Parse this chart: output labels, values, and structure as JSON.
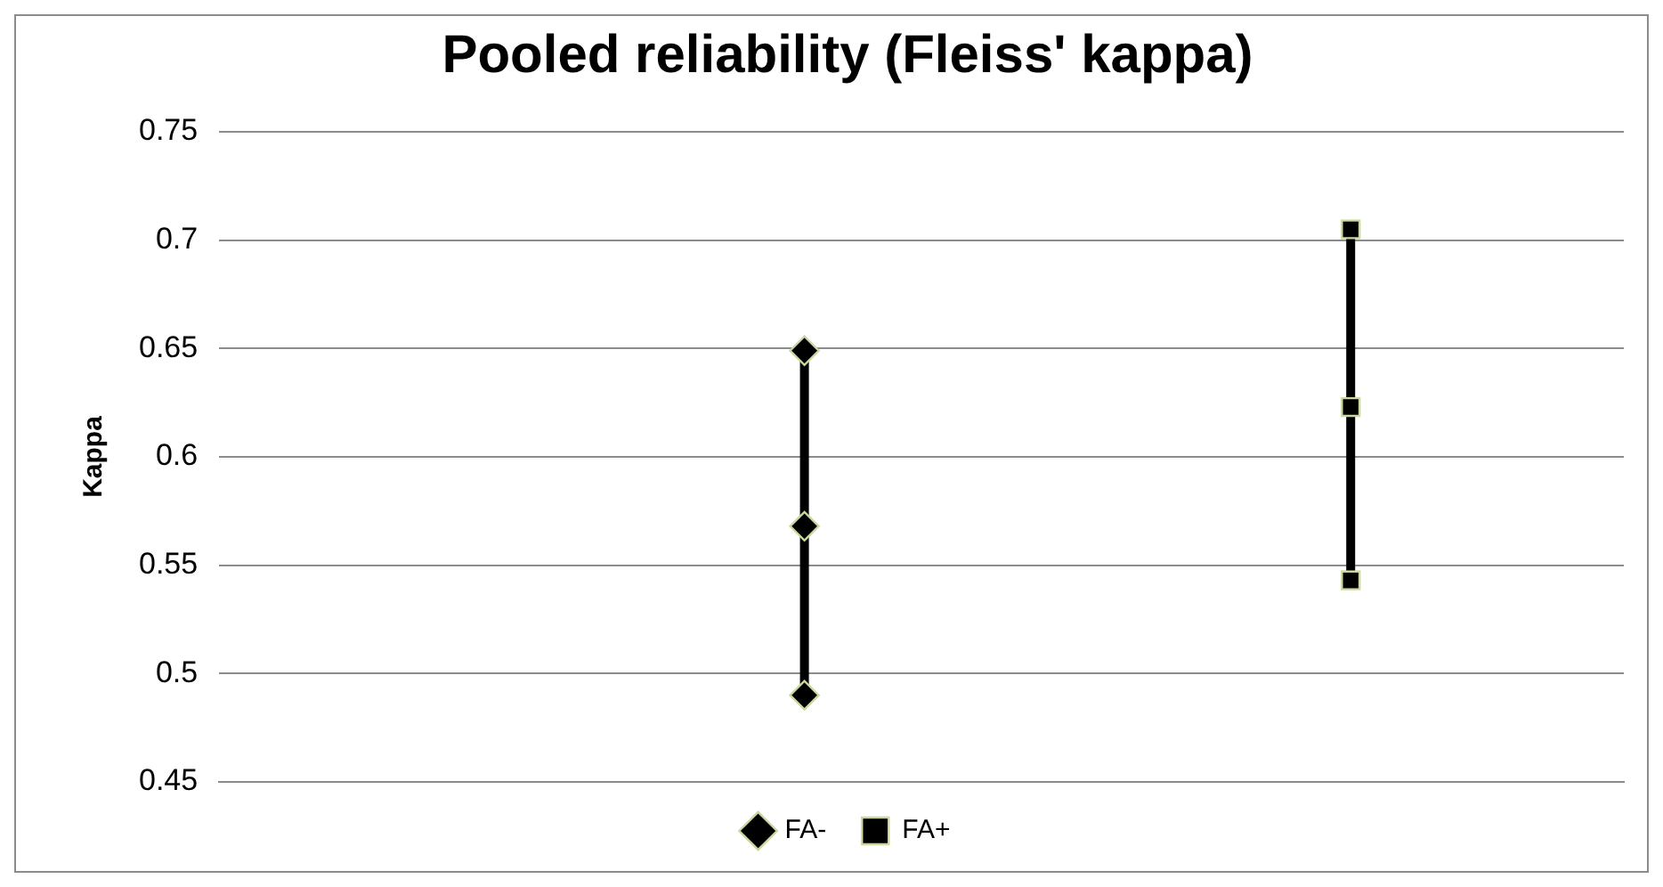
{
  "chart_data": {
    "type": "line",
    "title": "Pooled reliability (Fleiss' kappa)",
    "ylabel": "Kappa",
    "categories": [
      null,
      null,
      null,
      null,
      null,
      null,
      null,
      null,
      null,
      null,
      null,
      null,
      null,
      null,
      null,
      null,
      null,
      null
    ],
    "ylim": [
      0.45,
      0.75
    ],
    "yticks": [
      0.45,
      0.5,
      0.55,
      0.6,
      0.65,
      0.7,
      0.75
    ],
    "tick_labels": "y",
    "grid": "y",
    "legend": "bottom",
    "series": [
      {
        "name": "FA-",
        "color": "#000000",
        "marker": "diamond",
        "values": [
          null,
          null,
          null,
          null,
          null,
          null,
          null,
          0.568,
          null,
          null,
          null,
          null,
          null,
          null,
          null,
          null,
          null,
          null
        ]
      },
      {
        "name": "FA+",
        "color": "#000000",
        "marker": "square",
        "values": [
          null,
          null,
          null,
          null,
          null,
          null,
          null,
          null,
          null,
          null,
          null,
          null,
          null,
          null,
          0.623,
          null,
          null,
          null
        ]
      },
      {
        "color": "#000000",
        "marker": "diamond",
        "values": [
          null,
          null,
          null,
          null,
          null,
          null,
          null,
          0.49,
          null,
          null,
          null,
          null,
          null,
          null,
          null,
          null,
          null,
          null
        ]
      },
      {
        "color": "#000000",
        "marker": "diamond",
        "values": [
          null,
          null,
          null,
          null,
          null,
          null,
          null,
          0.649,
          null,
          null,
          null,
          null,
          null,
          null,
          null,
          null,
          null,
          null
        ]
      },
      {
        "color": "#000000",
        "marker": "square",
        "values": [
          null,
          null,
          null,
          null,
          null,
          null,
          null,
          null,
          null,
          null,
          null,
          null,
          null,
          null,
          0.543,
          null,
          null,
          null
        ]
      },
      {
        "color": "#000000",
        "marker": "square",
        "values": [
          null,
          null,
          null,
          null,
          null,
          null,
          null,
          null,
          null,
          null,
          null,
          null,
          null,
          null,
          0.705,
          null,
          null,
          null
        ]
      }
    ]
  }
}
